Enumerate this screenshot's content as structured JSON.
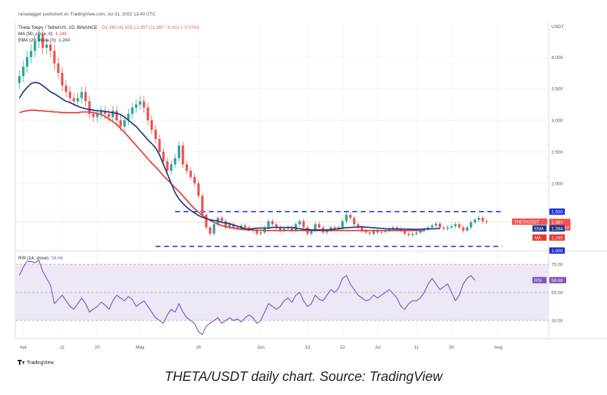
{
  "header": {
    "publisher": "ranadagger published on TradingView.com, Jul 31, 2022 13:40 UTC",
    "symbol_line": "Theta Token / TetherUS, 1D, BINANCE",
    "ohlc": "O1.390  H1.425  L1.357  C1.387  −0.001 (−0.07%)",
    "ma_label": "MA (50, close, 0)",
    "ma_value": "1.245",
    "ema_label": "EMA (20, close, 0)",
    "ema_value": "1.284",
    "rsi_label": "RSI (14, close)",
    "rsi_value": "58.68"
  },
  "badges": {
    "upper_level": "1.550",
    "price_symbol": "THETAUSDT",
    "price_value": "1.387",
    "countdown": "10:19:57",
    "ema_tag": "EMA",
    "ema_value": "1.284",
    "ma_tag": "MA",
    "ma_value": "1.245",
    "lower_level": "1.000",
    "rsi_tag": "RSI",
    "rsi_value": "58.68"
  },
  "logo_text": "TradingView",
  "caption": "THETA/USDT daily chart. Source: TradingView",
  "colors": {
    "up": "#26a69a",
    "down": "#ef5350",
    "ema": "#1e3a8a",
    "ma": "#e53935",
    "rsi": "#7e57c2",
    "rsi_band": "#ede7f6",
    "level": "#1f2fd6",
    "axis_text": "#555555"
  },
  "chart_data": {
    "type": "candlestick",
    "title": "Theta Token / TetherUS, 1D, BINANCE",
    "x_ticks": [
      "Apr",
      "11",
      "20",
      "May",
      "16",
      "Jun",
      "13",
      "22",
      "Jul",
      "11",
      "20",
      "Aug"
    ],
    "x_tick_days": [
      1,
      11,
      20,
      31,
      46,
      62,
      74,
      83,
      92,
      102,
      111,
      123
    ],
    "y_ticks": [
      "USDT",
      "4.000",
      "3.500",
      "3.000",
      "2.500",
      "2.000",
      "1.550",
      "1.000"
    ],
    "y_tick_values": [
      4.0,
      3.5,
      3.0,
      2.5,
      2.0
    ],
    "ylim": [
      0.95,
      4.55
    ],
    "start_day": -1,
    "end_day": 126,
    "closes": [
      3.7,
      3.85,
      4.0,
      4.1,
      4.25,
      4.35,
      4.15,
      4.2,
      4.1,
      3.9,
      3.75,
      3.55,
      3.45,
      3.35,
      3.3,
      3.35,
      3.45,
      3.3,
      3.1,
      3.05,
      3.1,
      3.15,
      3.1,
      3.05,
      3.15,
      3.0,
      2.9,
      3.0,
      3.1,
      3.2,
      3.25,
      3.3,
      3.2,
      3.0,
      2.85,
      2.7,
      2.5,
      2.35,
      2.2,
      2.3,
      2.4,
      2.6,
      2.3,
      2.2,
      2.1,
      2.0,
      1.8,
      1.5,
      1.3,
      1.2,
      1.35,
      1.45,
      1.4,
      1.3,
      1.35,
      1.3,
      1.28,
      1.33,
      1.3,
      1.27,
      1.25,
      1.2,
      1.22,
      1.3,
      1.4,
      1.35,
      1.3,
      1.25,
      1.28,
      1.3,
      1.25,
      1.35,
      1.4,
      1.3,
      1.2,
      1.25,
      1.35,
      1.3,
      1.22,
      1.25,
      1.3,
      1.28,
      1.3,
      1.4,
      1.5,
      1.45,
      1.35,
      1.3,
      1.25,
      1.22,
      1.2,
      1.25,
      1.22,
      1.23,
      1.25,
      1.27,
      1.3,
      1.28,
      1.25,
      1.2,
      1.18,
      1.2,
      1.22,
      1.25,
      1.27,
      1.3,
      1.33,
      1.36,
      1.3,
      1.28,
      1.3,
      1.32,
      1.35,
      1.3,
      1.25,
      1.3,
      1.38,
      1.42,
      1.45,
      1.4,
      1.387
    ],
    "ema20": [
      3.35,
      3.45,
      3.52,
      3.58,
      3.6,
      3.59,
      3.55,
      3.5,
      3.45,
      3.42,
      3.38,
      3.34,
      3.3,
      3.28,
      3.25,
      3.22,
      3.2,
      3.18,
      3.17,
      3.16,
      3.15,
      3.15,
      3.14,
      3.13,
      3.12,
      3.11,
      3.09,
      3.05,
      3.0,
      2.95,
      2.9,
      2.83,
      2.76,
      2.69,
      2.63,
      2.56,
      2.45,
      2.3,
      2.15,
      2.0,
      1.85,
      1.75,
      1.68,
      1.62,
      1.57,
      1.53,
      1.49,
      1.46,
      1.44,
      1.42,
      1.41,
      1.4,
      1.38,
      1.37,
      1.36,
      1.34,
      1.32,
      1.3,
      1.28,
      1.27,
      1.28,
      1.29,
      1.29,
      1.29,
      1.29,
      1.3,
      1.3,
      1.3,
      1.3,
      1.3,
      1.3,
      1.29,
      1.28,
      1.27,
      1.27,
      1.26,
      1.26,
      1.26,
      1.26,
      1.26,
      1.267,
      1.274,
      1.281,
      1.288,
      1.295,
      1.3,
      1.303,
      1.306,
      1.31,
      1.305,
      1.3,
      1.295,
      1.29,
      1.285,
      1.28,
      1.278,
      1.276,
      1.275,
      1.274,
      1.273,
      1.272,
      1.271,
      1.27,
      1.272,
      1.274,
      1.276,
      1.278,
      1.28,
      1.284
    ],
    "ma50": [
      3.12,
      3.14,
      3.15,
      3.16,
      3.16,
      3.15,
      3.15,
      3.14,
      3.14,
      3.13,
      3.13,
      3.12,
      3.12,
      3.12,
      3.12,
      3.12,
      3.13,
      3.13,
      3.13,
      3.12,
      3.11,
      3.09,
      3.06,
      3.02,
      2.98,
      2.93,
      2.87,
      2.81,
      2.74,
      2.67,
      2.6,
      2.53,
      2.46,
      2.39,
      2.32,
      2.26,
      2.19,
      2.12,
      2.06,
      1.99,
      1.93,
      1.87,
      1.8,
      1.73,
      1.66,
      1.6,
      1.54,
      1.49,
      1.45,
      1.41,
      1.38,
      1.35,
      1.33,
      1.31,
      1.3,
      1.29,
      1.28,
      1.27,
      1.265,
      1.26,
      1.258,
      1.256,
      1.254,
      1.252,
      1.25,
      1.25,
      1.25,
      1.25,
      1.25,
      1.25,
      1.25,
      1.25,
      1.25,
      1.25,
      1.25,
      1.25,
      1.25,
      1.25,
      1.25,
      1.25,
      1.25,
      1.25,
      1.25,
      1.25,
      1.25,
      1.25,
      1.25,
      1.25,
      1.25,
      1.25,
      1.25,
      1.25,
      1.25,
      1.25,
      1.25,
      1.25,
      1.25,
      1.25,
      1.25,
      1.25,
      1.25,
      1.25,
      1.25,
      1.25,
      1.245
    ],
    "ma50_start_day": 0,
    "ema20_start_day": 0,
    "horizontal_levels": [
      1.55,
      1.0
    ],
    "level_labels": [
      "1.550",
      "1.000"
    ],
    "rsi": {
      "label": "RSI (14, close)",
      "ticks": [
        "70.00",
        "50.00",
        "30.00"
      ],
      "tick_values": [
        70,
        50,
        30
      ],
      "ylim": [
        18,
        78
      ],
      "band": [
        30,
        70
      ],
      "values": [
        62,
        68,
        72,
        72,
        71,
        73,
        65,
        60,
        55,
        42,
        45,
        48,
        44,
        40,
        38,
        42,
        46,
        42,
        36,
        38,
        40,
        43,
        41,
        38,
        44,
        48,
        46,
        44,
        47,
        45,
        40,
        42,
        44,
        40,
        36,
        32,
        30,
        28,
        34,
        38,
        36,
        42,
        36,
        32,
        30,
        28,
        22,
        20,
        26,
        28,
        30,
        32,
        28,
        30,
        32,
        30,
        31,
        29,
        32,
        34,
        32,
        28,
        30,
        36,
        42,
        40,
        38,
        40,
        44,
        46,
        43,
        48,
        50,
        44,
        40,
        42,
        48,
        45,
        44,
        48,
        52,
        50,
        53,
        60,
        62,
        56,
        52,
        48,
        46,
        44,
        45,
        48,
        46,
        48,
        50,
        52,
        49,
        46,
        40,
        38,
        42,
        44,
        44,
        46,
        50,
        56,
        60,
        56,
        52,
        54,
        56,
        50,
        44,
        48,
        56,
        60,
        62,
        58.68
      ]
    },
    "current": {
      "price": 1.387,
      "ema20": 1.284,
      "ma50": 1.245,
      "rsi": 58.68
    }
  }
}
